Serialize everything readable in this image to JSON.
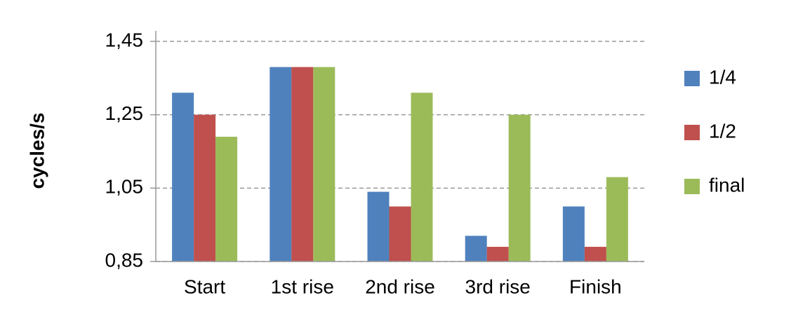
{
  "chart_data": {
    "type": "bar",
    "ylabel": "cycles/s",
    "categories": [
      "Start",
      "1st rise",
      "2nd rise",
      "3rd rise",
      "Finish"
    ],
    "series": [
      {
        "name": "1/4",
        "color": "#4f81bd",
        "values": [
          1.31,
          1.38,
          1.04,
          0.92,
          1.0
        ]
      },
      {
        "name": "1/2",
        "color": "#c0504d",
        "values": [
          1.25,
          1.38,
          1.0,
          0.89,
          0.89
        ]
      },
      {
        "name": "final",
        "color": "#9bbb59",
        "values": [
          1.19,
          1.38,
          1.31,
          1.25,
          1.08
        ]
      }
    ],
    "ylim": [
      0.85,
      1.45
    ],
    "yticks": [
      {
        "value": 0.85,
        "label": "0,85"
      },
      {
        "value": 1.05,
        "label": "1,05"
      },
      {
        "value": 1.25,
        "label": "1,25"
      },
      {
        "value": 1.45,
        "label": "1,45"
      }
    ],
    "grid": true,
    "legend": "right"
  }
}
